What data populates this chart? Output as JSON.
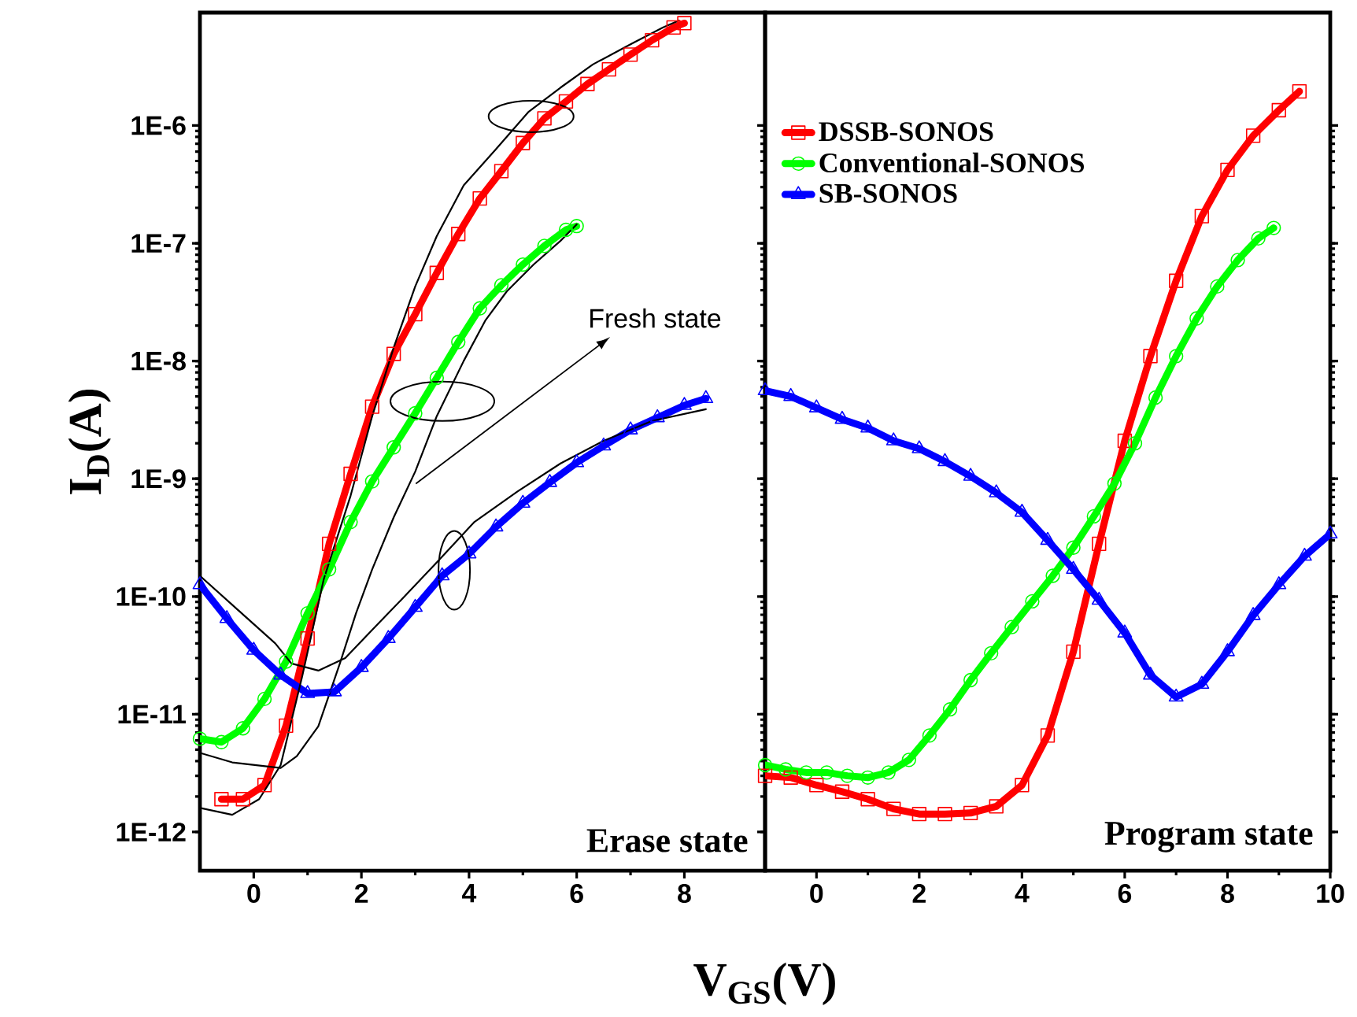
{
  "chart_data": [
    {
      "type": "line",
      "xlabel": "V$_{GS}$(V)",
      "ylabel": "I$_{D}$(A)",
      "log": "y",
      "xlim": [
        -1,
        9.5
      ],
      "ylim": [
        4.7e-13,
        9.1e-06
      ],
      "xticks": [
        0,
        2,
        4,
        6,
        8
      ],
      "yticks": [
        {
          "value": 1e-12,
          "label": "1E-12"
        },
        {
          "value": 1e-11,
          "label": "1E-11"
        },
        {
          "value": 1e-10,
          "label": "1E-10"
        },
        {
          "value": 1e-09,
          "label": "1E-9"
        },
        {
          "value": 1e-08,
          "label": "1E-8"
        },
        {
          "value": 1e-07,
          "label": "1E-7"
        },
        {
          "value": 1e-06,
          "label": "1E-6"
        }
      ],
      "annotations": [
        "Fresh state",
        "Erase state"
      ],
      "series": [
        {
          "color": "#ff0000",
          "marker": "square",
          "x": [
            -0.6,
            -0.2,
            0.2,
            0.6,
            1.0,
            1.4,
            1.8,
            2.2,
            2.6,
            3.0,
            3.4,
            3.8,
            4.2,
            4.6,
            5.0,
            5.4,
            5.8,
            6.2,
            6.6,
            7.0,
            7.4,
            7.8,
            8.0
          ],
          "values": [
            1.9e-12,
            1.9e-12,
            2.5e-12,
            8e-12,
            4.4e-11,
            2.8e-10,
            1.1e-09,
            4.1e-09,
            1.15e-08,
            2.5e-08,
            5.6e-08,
            1.2e-07,
            2.4e-07,
            4.1e-07,
            7.1e-07,
            1.15e-06,
            1.6e-06,
            2.25e-06,
            3e-06,
            4e-06,
            5.3e-06,
            6.8e-06,
            7.4e-06
          ]
        },
        {
          "color": "#00ff00",
          "marker": "circle",
          "x": [
            -1.0,
            -0.6,
            -0.2,
            0.2,
            0.6,
            1.0,
            1.4,
            1.8,
            2.2,
            2.6,
            3.0,
            3.4,
            3.8,
            4.2,
            4.6,
            5.0,
            5.4,
            5.8,
            6.0
          ],
          "values": [
            6.2e-12,
            5.8e-12,
            7.6e-12,
            1.35e-11,
            2.8e-11,
            7.2e-11,
            1.7e-10,
            4.3e-10,
            9.5e-10,
            1.85e-09,
            3.6e-09,
            7.2e-09,
            1.45e-08,
            2.8e-08,
            4.4e-08,
            6.6e-08,
            9.5e-08,
            1.3e-07,
            1.4e-07
          ]
        },
        {
          "color": "#0000ff",
          "marker": "triangle",
          "x": [
            -1.0,
            -0.5,
            0.0,
            0.5,
            1.0,
            1.5,
            2.0,
            2.5,
            3.0,
            3.5,
            4.0,
            4.5,
            5.0,
            5.5,
            6.0,
            6.5,
            7.0,
            7.5,
            8.0,
            8.4
          ],
          "values": [
            1.26e-10,
            6.5e-11,
            3.5e-11,
            2.15e-11,
            1.5e-11,
            1.55e-11,
            2.5e-11,
            4.4e-11,
            8.1e-11,
            1.5e-10,
            2.3e-10,
            3.9e-10,
            6.2e-10,
            9.3e-10,
            1.37e-09,
            1.9e-09,
            2.6e-09,
            3.3e-09,
            4.2e-09,
            4.8e-09
          ]
        },
        {
          "color": "#000000",
          "marker": "none",
          "x": [
            -1.0,
            -0.4,
            0.1,
            0.5,
            0.9,
            1.3,
            1.8,
            2.2,
            2.6,
            3.0,
            3.4,
            3.9,
            4.5,
            5.1,
            5.7,
            6.3,
            7.0,
            7.6,
            7.9
          ],
          "values": [
            1.6e-12,
            1.4e-12,
            1.9e-12,
            3.7e-12,
            2.1e-11,
            1.4e-10,
            7.2e-10,
            3.4e-09,
            1.3e-08,
            4.3e-08,
            1.15e-07,
            3.1e-07,
            6.3e-07,
            1.3e-06,
            2.1e-06,
            3.3e-06,
            4.9e-06,
            6.8e-06,
            7.8e-06
          ]
        },
        {
          "color": "#000000",
          "marker": "none",
          "x": [
            -1.0,
            -0.4,
            0.5,
            0.8,
            1.2,
            1.6,
            1.9,
            2.2,
            2.6,
            3.0,
            3.4,
            3.9,
            4.3,
            4.7,
            5.2,
            5.7,
            6.0
          ],
          "values": [
            4.7e-12,
            3.9e-12,
            3.5e-12,
            4.4e-12,
            7.9e-12,
            2.7e-11,
            7.2e-11,
            1.7e-10,
            4.7e-10,
            1.15e-09,
            3.4e-09,
            1e-08,
            2.2e-08,
            3.9e-08,
            6.6e-08,
            1.05e-07,
            1.45e-07
          ]
        },
        {
          "color": "#000000",
          "marker": "none",
          "x": [
            -1.0,
            -0.4,
            0.4,
            0.7,
            1.2,
            1.7,
            2.2,
            2.8,
            3.4,
            4.1,
            4.9,
            5.7,
            6.5,
            7.4,
            8.4
          ],
          "values": [
            1.5e-10,
            8.5e-11,
            4e-11,
            2.7e-11,
            2.35e-11,
            3e-11,
            5.2e-11,
            1e-10,
            1.95e-10,
            4.3e-10,
            7.8e-10,
            1.35e-09,
            2.1e-09,
            3.1e-09,
            3.9e-09
          ]
        }
      ]
    },
    {
      "type": "line",
      "log": "y",
      "tick_labels": "x",
      "legend": "top left",
      "xlim": [
        -1,
        10
      ],
      "ylim": [
        4.7e-13,
        9.1e-06
      ],
      "xticks": [
        0,
        2,
        4,
        6,
        8,
        10
      ],
      "yticks": [
        {
          "value": 1e-12,
          "label": null
        },
        {
          "value": 1e-11,
          "label": null
        },
        {
          "value": 1e-10,
          "label": null
        },
        {
          "value": 1e-09,
          "label": null
        },
        {
          "value": 1e-08,
          "label": null
        },
        {
          "value": 1e-07,
          "label": null
        },
        {
          "value": 1e-06,
          "label": null
        }
      ],
      "annotations": [
        "Program state"
      ],
      "series": [
        {
          "name": "DSSB-SONOS",
          "color": "#ff0000",
          "marker": "square",
          "x": [
            -1.0,
            -0.5,
            0.0,
            0.5,
            1.0,
            1.5,
            2.0,
            2.5,
            3.0,
            3.5,
            4.0,
            4.5,
            5.0,
            5.5,
            6.0,
            6.5,
            7.0,
            7.5,
            8.0,
            8.5,
            9.0,
            9.4
          ],
          "values": [
            3e-12,
            2.9e-12,
            2.5e-12,
            2.2e-12,
            1.9e-12,
            1.57e-12,
            1.42e-12,
            1.42e-12,
            1.45e-12,
            1.65e-12,
            2.5e-12,
            6.6e-12,
            3.4e-11,
            2.8e-10,
            2.1e-09,
            1.1e-08,
            4.8e-08,
            1.7e-07,
            4.2e-07,
            8.2e-07,
            1.35e-06,
            1.95e-06
          ]
        },
        {
          "name": "Conventional-SONOS",
          "color": "#00ff00",
          "marker": "circle",
          "x": [
            -1.0,
            -0.6,
            -0.2,
            0.2,
            0.6,
            1.0,
            1.4,
            1.8,
            2.2,
            2.6,
            3.0,
            3.4,
            3.8,
            4.2,
            4.6,
            5.0,
            5.4,
            5.8,
            6.2,
            6.6,
            7.0,
            7.4,
            7.8,
            8.2,
            8.6,
            8.9
          ],
          "values": [
            3.7e-12,
            3.4e-12,
            3.2e-12,
            3.2e-12,
            3e-12,
            2.9e-12,
            3.2e-12,
            4.1e-12,
            6.6e-12,
            1.1e-11,
            1.95e-11,
            3.3e-11,
            5.5e-11,
            9.1e-11,
            1.5e-10,
            2.6e-10,
            4.8e-10,
            9.1e-10,
            2e-09,
            4.9e-09,
            1.1e-08,
            2.3e-08,
            4.3e-08,
            7.2e-08,
            1.1e-07,
            1.35e-07
          ]
        },
        {
          "name": "SB-SONOS",
          "color": "#0000ff",
          "marker": "triangle",
          "x": [
            -1.0,
            -0.5,
            0.0,
            0.5,
            1.0,
            1.5,
            2.0,
            2.5,
            3.0,
            3.5,
            4.0,
            4.5,
            5.0,
            5.5,
            6.0,
            6.5,
            7.0,
            7.5,
            8.0,
            8.5,
            9.0,
            9.5,
            10.0
          ],
          "values": [
            5.6e-09,
            5e-09,
            4e-09,
            3.2e-09,
            2.7e-09,
            2.1e-09,
            1.8e-09,
            1.4e-09,
            1.05e-09,
            7.6e-10,
            5.2e-10,
            3e-10,
            1.7e-10,
            9.3e-11,
            4.9e-11,
            2.15e-11,
            1.4e-11,
            1.8e-11,
            3.4e-11,
            6.9e-11,
            1.26e-10,
            2.2e-10,
            3.4e-10
          ]
        }
      ]
    }
  ]
}
